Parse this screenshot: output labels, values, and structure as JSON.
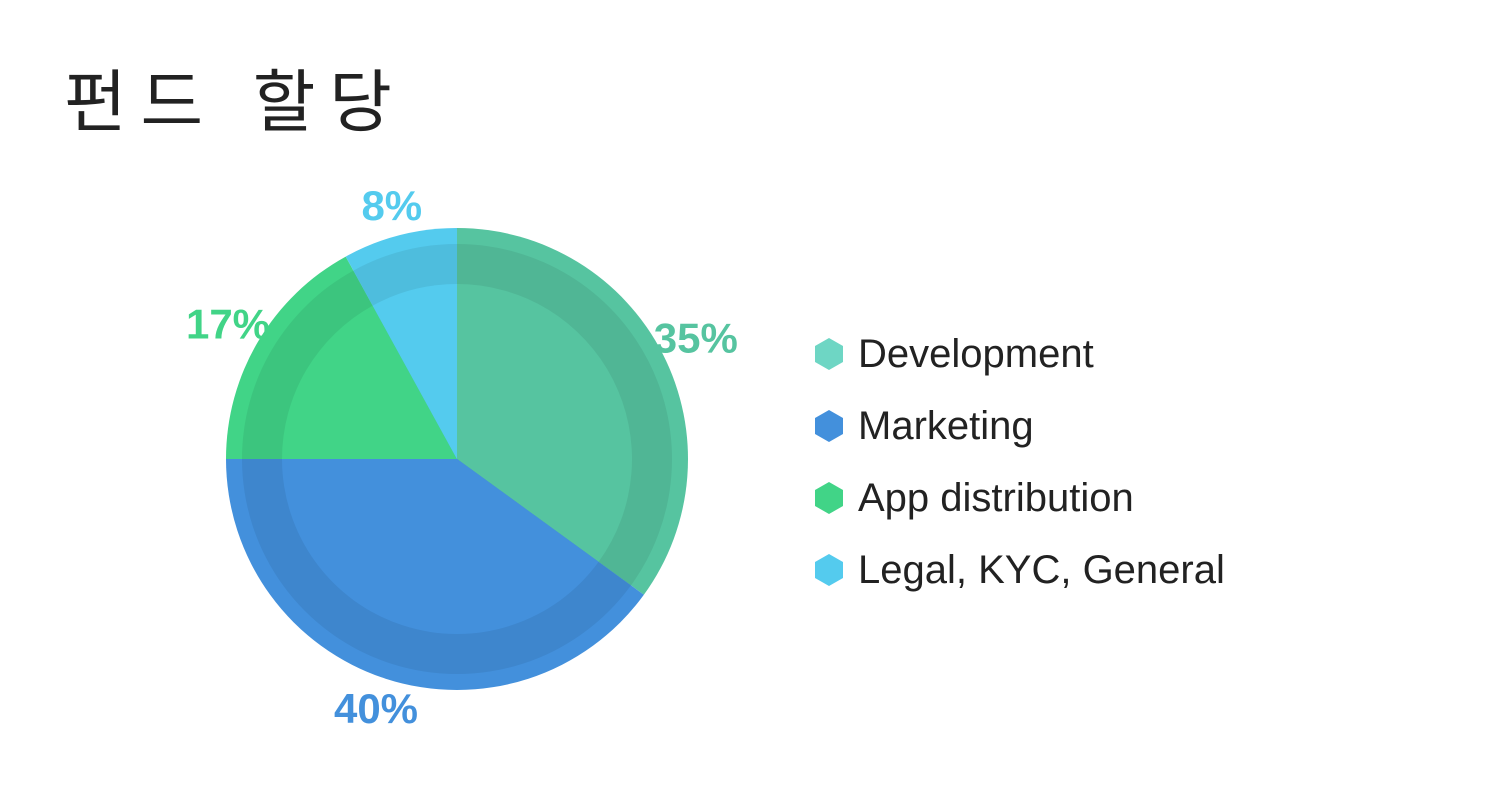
{
  "title": "펀드 할당",
  "chart_data": {
    "type": "pie",
    "slices": [
      {
        "label": "Development",
        "value": 35,
        "display": "35%",
        "color": "#56c4a0",
        "legend_color": "#6ed6c4"
      },
      {
        "label": "Marketing",
        "value": 40,
        "display": "40%",
        "color": "#4390dc",
        "legend_color": "#4390dc"
      },
      {
        "label": "App distribution",
        "value": 17,
        "display": "17%",
        "color": "#41d487",
        "legend_color": "#41d487"
      },
      {
        "label": "Legal, KYC, General",
        "value": 8,
        "display": "8%",
        "color": "#54cbee",
        "legend_color": "#54cbee"
      }
    ],
    "start_angle": "12 o'clock",
    "direction": "clockwise",
    "legend_position": "right"
  }
}
